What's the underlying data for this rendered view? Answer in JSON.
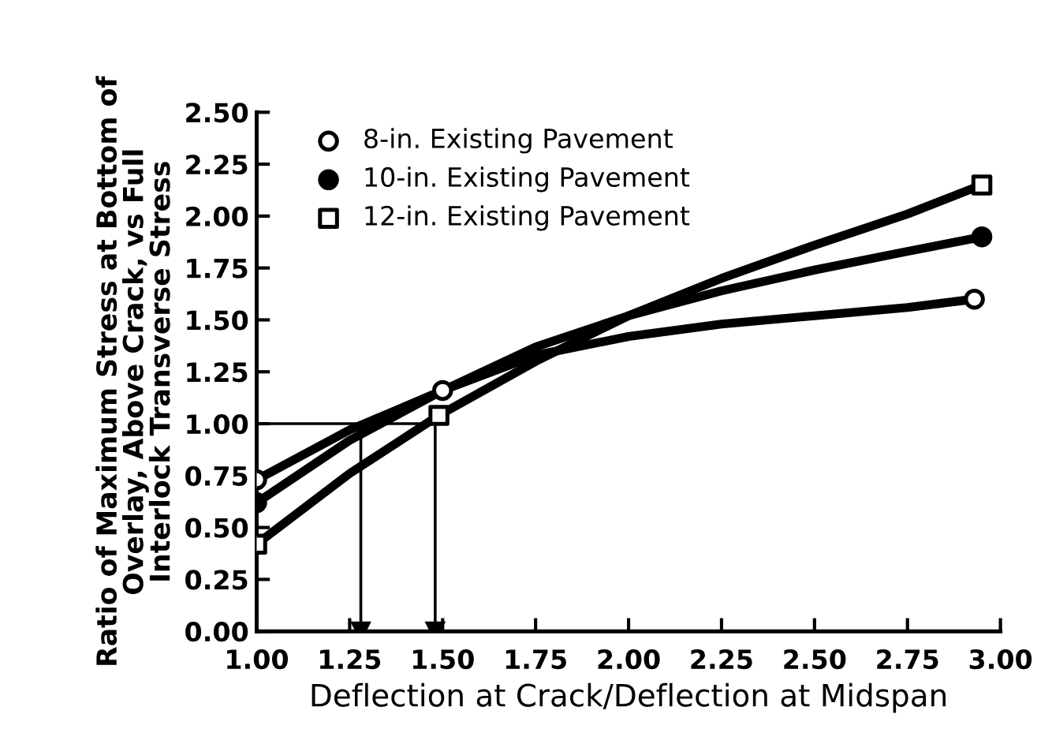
{
  "chart_data": {
    "type": "line",
    "xlabel": "Deflection at Crack/Deflection at Midspan",
    "ylabel": "Ratio of Maximum Stress at Bottom of\nOverlay, Above Crack, vs Full\nInterlock Transverse Stress",
    "xlim": [
      1.0,
      3.0
    ],
    "xticks": [
      {
        "value": 1.0,
        "label": "1.00"
      },
      {
        "value": 1.25,
        "label": "1.25"
      },
      {
        "value": 1.5,
        "label": "1.50"
      },
      {
        "value": 1.75,
        "label": "1.75"
      },
      {
        "value": 2.0,
        "label": "2.00"
      },
      {
        "value": 2.25,
        "label": "2.25"
      },
      {
        "value": 2.5,
        "label": "2.50"
      },
      {
        "value": 2.75,
        "label": "2.75"
      },
      {
        "value": 3.0,
        "label": "3.00"
      }
    ],
    "ylim": [
      0,
      2.5
    ],
    "yticks": [
      {
        "value": 0,
        "label": "0.00"
      },
      {
        "value": 0.25,
        "label": "0.25"
      },
      {
        "value": 0.5,
        "label": "0.50"
      },
      {
        "value": 0.75,
        "label": "0.75"
      },
      {
        "value": 1.0,
        "label": "1.00"
      },
      {
        "value": 1.25,
        "label": "1.25"
      },
      {
        "value": 1.5,
        "label": "1.50"
      },
      {
        "value": 1.75,
        "label": "1.75"
      },
      {
        "value": 2.0,
        "label": "2.00"
      },
      {
        "value": 2.25,
        "label": "2.25"
      },
      {
        "value": 2.5,
        "label": "2.50"
      }
    ],
    "grid": false,
    "legend": "top left",
    "line_style": "solid",
    "series": [
      {
        "color": "#000000",
        "x": [
          1.0,
          1.25,
          1.5,
          1.75,
          2.0,
          2.25,
          2.5,
          2.75,
          2.93
        ],
        "values": [
          0.73,
          0.97,
          1.16,
          1.33,
          1.42,
          1.48,
          1.52,
          1.56,
          1.6
        ]
      },
      {
        "color": "#000000",
        "x": [
          1.0,
          1.25,
          1.5,
          1.75,
          2.0,
          2.25,
          2.5,
          2.75,
          2.95
        ],
        "values": [
          0.62,
          0.92,
          1.16,
          1.37,
          1.52,
          1.64,
          1.74,
          1.83,
          1.9
        ]
      },
      {
        "color": "#000000",
        "x": [
          1.0,
          1.25,
          1.49,
          1.75,
          2.0,
          2.25,
          2.5,
          2.75,
          2.95
        ],
        "values": [
          0.42,
          0.76,
          1.04,
          1.3,
          1.52,
          1.7,
          1.86,
          2.01,
          2.15
        ]
      },
      {
        "type": "scatter",
        "name": "8-in. Existing Pavement",
        "color": "#ffffff",
        "marker": "circle",
        "x": [
          1.0,
          1.5,
          2.93
        ],
        "values": [
          0.73,
          1.16,
          1.6
        ]
      },
      {
        "type": "scatter",
        "name": "10-in. Existing Pavement",
        "color": "#000000",
        "marker": "circle",
        "x": [
          1.0,
          2.95
        ],
        "values": [
          0.62,
          1.9
        ]
      },
      {
        "type": "scatter",
        "name": "12-in. Existing Pavement",
        "color": "#ffffff",
        "marker": "square",
        "x": [
          1.0,
          1.49,
          2.95
        ],
        "values": [
          0.42,
          1.04,
          2.15
        ]
      },
      {
        "color": "#000000",
        "x": [
          1.0,
          1.49
        ],
        "values": [
          1.0,
          1.0
        ]
      },
      {
        "color": "#000000",
        "marker": "triangle",
        "x": [
          1.28,
          1.28
        ],
        "values": [
          1.0,
          0.0
        ]
      },
      {
        "color": "#000000",
        "marker": "triangle",
        "x": [
          1.48,
          1.48
        ],
        "values": [
          1.0,
          0.0
        ]
      }
    ]
  }
}
